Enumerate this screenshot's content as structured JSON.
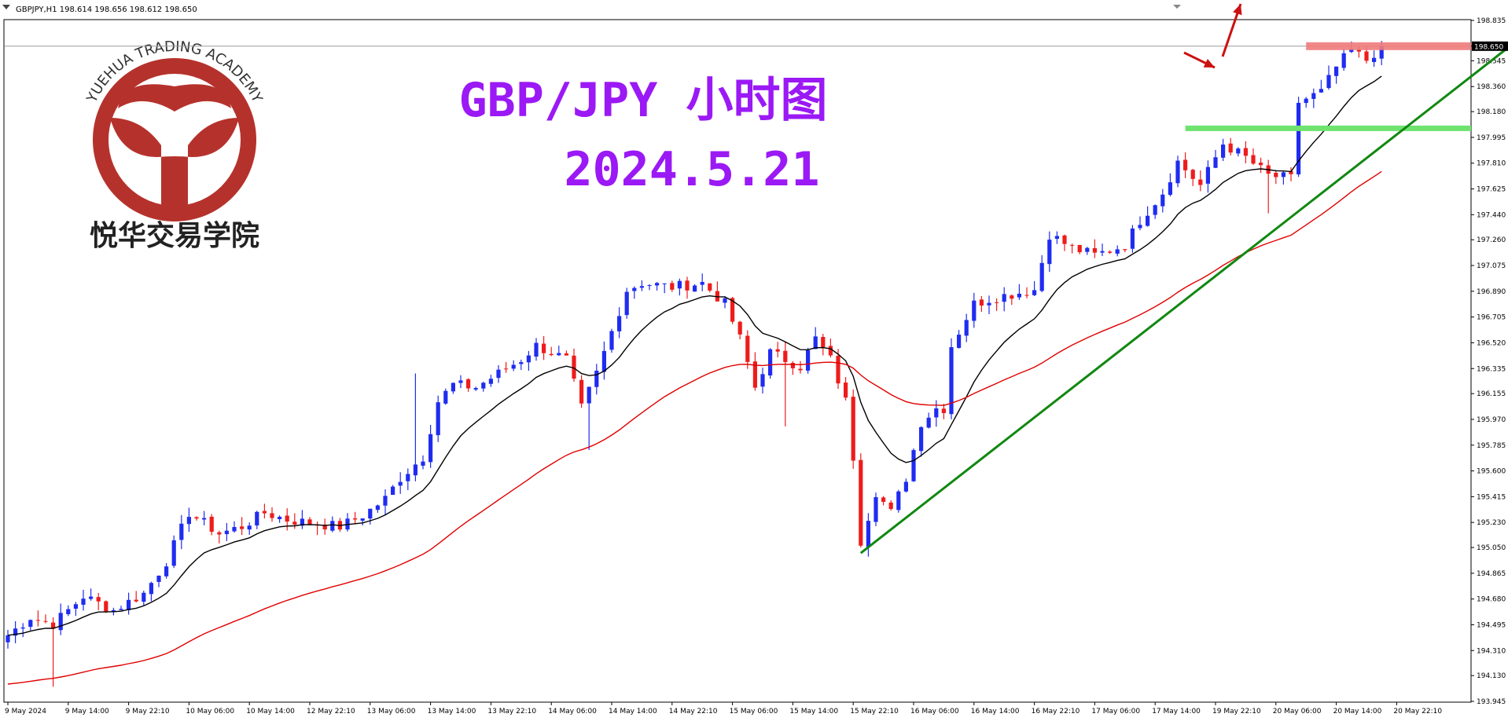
{
  "header": {
    "symbol_info": "GBPJPY,H1  198.614 198.656 198.612 198.650"
  },
  "overlay": {
    "title": "GBP/JPY 小时图",
    "date": "2024.5.21",
    "title_color": "#9b19f5"
  },
  "logo": {
    "ring_text": "YUEHUA TRADING ACADEMY",
    "chinese_name": "悦华交易学院",
    "color": "#b5322c"
  },
  "chart_data": {
    "type": "candlestick",
    "symbol": "GBPJPY",
    "timeframe": "H1",
    "ylim": [
      193.945,
      198.835
    ],
    "price_ticks": [
      198.835,
      198.65,
      198.545,
      198.36,
      198.18,
      197.995,
      197.81,
      197.625,
      197.44,
      197.26,
      197.075,
      196.89,
      196.705,
      196.52,
      196.335,
      196.155,
      195.97,
      195.785,
      195.6,
      195.415,
      195.23,
      195.05,
      194.865,
      194.68,
      194.495,
      194.31,
      194.13,
      193.945
    ],
    "current_price": 198.65,
    "time_labels": [
      {
        "i": 0,
        "label": "9 May 2024"
      },
      {
        "i": 8,
        "label": "9 May 14:00"
      },
      {
        "i": 16,
        "label": "9 May 22:10"
      },
      {
        "i": 24,
        "label": "10 May 06:00"
      },
      {
        "i": 32,
        "label": "10 May 14:00"
      },
      {
        "i": 40,
        "label": "12 May 22:10"
      },
      {
        "i": 48,
        "label": "13 May 06:00"
      },
      {
        "i": 56,
        "label": "13 May 14:00"
      },
      {
        "i": 64,
        "label": "13 May 22:10"
      },
      {
        "i": 72,
        "label": "14 May 06:00"
      },
      {
        "i": 80,
        "label": "14 May 14:00"
      },
      {
        "i": 88,
        "label": "14 May 22:10"
      },
      {
        "i": 96,
        "label": "15 May 06:00"
      },
      {
        "i": 104,
        "label": "15 May 14:00"
      },
      {
        "i": 112,
        "label": "15 May 22:10"
      },
      {
        "i": 120,
        "label": "16 May 06:00"
      },
      {
        "i": 128,
        "label": "16 May 14:00"
      },
      {
        "i": 136,
        "label": "16 May 22:10"
      },
      {
        "i": 144,
        "label": "17 May 06:00"
      },
      {
        "i": 152,
        "label": "17 May 14:00"
      },
      {
        "i": 160,
        "label": "19 May 22:10"
      },
      {
        "i": 168,
        "label": "20 May 06:00"
      },
      {
        "i": 176,
        "label": "20 May 14:00"
      },
      {
        "i": 184,
        "label": "20 May 22:10"
      }
    ],
    "close_keyframes": [
      [
        0,
        194.42
      ],
      [
        3,
        194.55
      ],
      [
        6,
        194.5
      ],
      [
        10,
        194.7
      ],
      [
        14,
        194.6
      ],
      [
        18,
        194.72
      ],
      [
        21,
        194.95
      ],
      [
        24,
        195.3
      ],
      [
        28,
        195.15
      ],
      [
        31,
        195.2
      ],
      [
        34,
        195.3
      ],
      [
        37,
        195.25
      ],
      [
        41,
        195.22
      ],
      [
        44,
        195.2
      ],
      [
        47,
        195.28
      ],
      [
        50,
        195.4
      ],
      [
        52,
        195.55
      ],
      [
        55,
        195.7
      ],
      [
        57,
        196.1
      ],
      [
        59,
        196.22
      ],
      [
        62,
        196.2
      ],
      [
        65,
        196.3
      ],
      [
        68,
        196.4
      ],
      [
        70,
        196.5
      ],
      [
        72,
        196.45
      ],
      [
        74,
        196.4
      ],
      [
        76,
        196.05
      ],
      [
        78,
        196.3
      ],
      [
        80,
        196.6
      ],
      [
        82,
        196.9
      ],
      [
        84,
        196.95
      ],
      [
        88,
        196.92
      ],
      [
        92,
        196.95
      ],
      [
        95,
        196.8
      ],
      [
        97,
        196.55
      ],
      [
        99,
        196.2
      ],
      [
        101,
        196.45
      ],
      [
        103,
        196.4
      ],
      [
        105,
        196.35
      ],
      [
        107,
        196.55
      ],
      [
        109,
        196.4
      ],
      [
        111,
        196.1
      ],
      [
        112,
        195.7
      ],
      [
        113,
        195.1
      ],
      [
        115,
        195.45
      ],
      [
        117,
        195.3
      ],
      [
        119,
        195.55
      ],
      [
        121,
        195.95
      ],
      [
        123,
        196.05
      ],
      [
        124,
        196.05
      ],
      [
        125,
        196.5
      ],
      [
        128,
        196.8
      ],
      [
        131,
        196.85
      ],
      [
        134,
        196.88
      ],
      [
        136,
        196.9
      ],
      [
        138,
        197.3
      ],
      [
        141,
        197.2
      ],
      [
        144,
        197.15
      ],
      [
        148,
        197.22
      ],
      [
        150,
        197.4
      ],
      [
        153,
        197.6
      ],
      [
        155,
        197.82
      ],
      [
        158,
        197.65
      ],
      [
        161,
        197.95
      ],
      [
        164,
        197.85
      ],
      [
        167,
        197.72
      ],
      [
        170,
        197.7
      ],
      [
        171,
        198.25
      ],
      [
        174,
        198.32
      ],
      [
        176,
        198.5
      ],
      [
        178,
        198.62
      ],
      [
        180,
        198.55
      ],
      [
        182,
        198.65
      ]
    ],
    "indicators": {
      "ma_fast": {
        "name": "",
        "color": "#000000"
      },
      "ma_slow": {
        "name": "",
        "color": "#e00000"
      }
    },
    "annotations": {
      "resistance_zone": {
        "price": 198.65,
        "color": "#ef7b7b"
      },
      "support_level": {
        "price": 198.06,
        "color": "#6ee36e"
      },
      "trendline": {
        "from": [
          113,
          195.01
        ],
        "to": [
          199,
          198.65
        ],
        "color": "#118811"
      },
      "arrows": {
        "color": "#cc1111"
      }
    },
    "colors": {
      "bull": "#1f2cf0",
      "bear": "#ee1c1c",
      "grid": "#000000",
      "axis_text": "#000000",
      "current_price_tag_bg": "#000000",
      "current_price_tag_text": "#ffffff"
    }
  }
}
